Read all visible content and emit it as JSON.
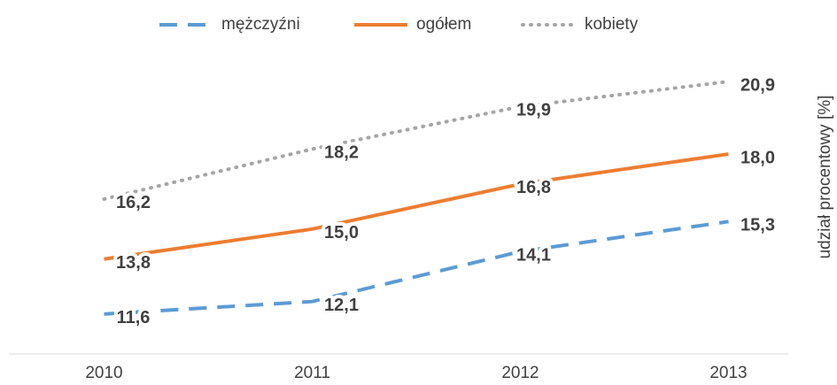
{
  "chart_data": {
    "type": "line",
    "categories": [
      "2010",
      "2011",
      "2012",
      "2013"
    ],
    "y_axis_label": "udział procentowy [%]",
    "ylim": [
      10,
      22.5
    ],
    "series": [
      {
        "name": "mężczyźni",
        "color": "#5b9bd5",
        "style": "dashed",
        "values": [
          11.6,
          12.1,
          14.1,
          15.3
        ],
        "value_labels": [
          "11,6",
          "12,1",
          "14,1",
          "15,3"
        ]
      },
      {
        "name": "ogółem",
        "color": "#ed7d31",
        "style": "solid",
        "values": [
          13.8,
          15.0,
          16.8,
          18.0
        ],
        "value_labels": [
          "13,8",
          "15,0",
          "16,8",
          "18,0"
        ]
      },
      {
        "name": "kobiety",
        "color": "#a5a5a5",
        "style": "dotted",
        "values": [
          16.2,
          18.2,
          19.9,
          20.9
        ],
        "value_labels": [
          "16,2",
          "18,2",
          "19,9",
          "20,9"
        ]
      }
    ],
    "legend": "top"
  }
}
